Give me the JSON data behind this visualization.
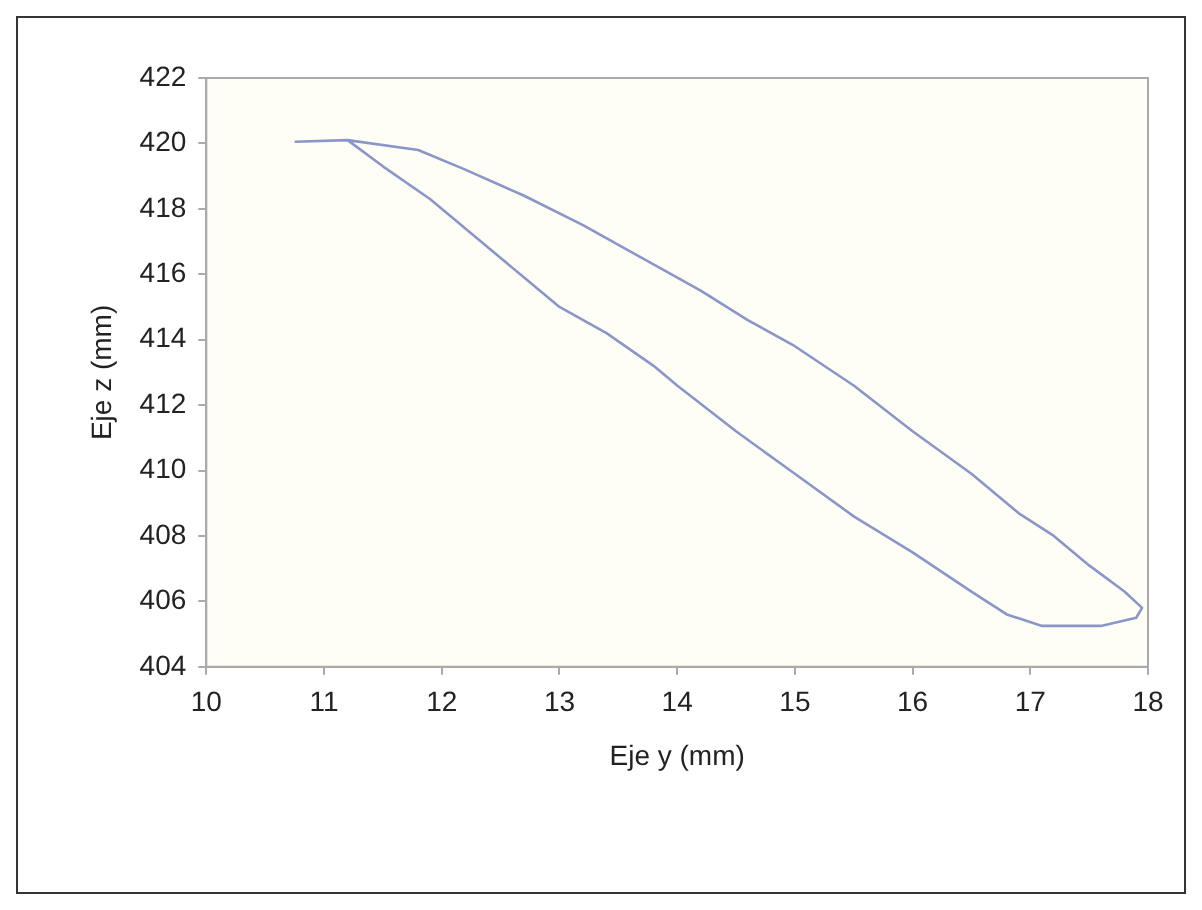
{
  "chart_data": {
    "type": "line",
    "xlabel": "Eje y (mm)",
    "ylabel": "Eje z (mm)",
    "xlim": [
      10,
      18
    ],
    "xticks": [
      10,
      11,
      12,
      13,
      14,
      15,
      16,
      17,
      18
    ],
    "ylim": [
      404,
      422
    ],
    "yticks": [
      404,
      406,
      408,
      410,
      412,
      414,
      416,
      418,
      420,
      422
    ],
    "grid": false,
    "legend": false,
    "marker": "none",
    "line_style": "solid",
    "series": [
      {
        "color": "#8a96c8",
        "x": [
          10.75,
          11.2,
          11.8,
          12.2,
          12.7,
          13.2,
          13.7,
          14.2,
          14.6,
          15.0,
          15.5,
          16.0,
          16.5,
          16.9,
          17.2,
          17.5,
          17.8,
          17.95,
          17.9,
          17.6,
          17.1,
          16.8,
          16.5,
          16.0,
          15.5,
          15.0,
          14.5,
          14.0,
          13.8,
          13.4,
          13.0,
          12.7,
          12.3,
          11.9,
          11.5,
          11.2
        ],
        "values": [
          420.05,
          420.1,
          419.8,
          419.2,
          418.4,
          417.5,
          416.5,
          415.5,
          414.6,
          413.8,
          412.6,
          411.2,
          409.9,
          408.7,
          408.0,
          407.1,
          406.3,
          405.8,
          405.5,
          405.25,
          405.25,
          405.6,
          406.3,
          407.5,
          408.6,
          409.9,
          411.2,
          412.6,
          413.2,
          414.2,
          415.0,
          415.9,
          417.1,
          418.3,
          419.3,
          420.1
        ]
      }
    ]
  }
}
